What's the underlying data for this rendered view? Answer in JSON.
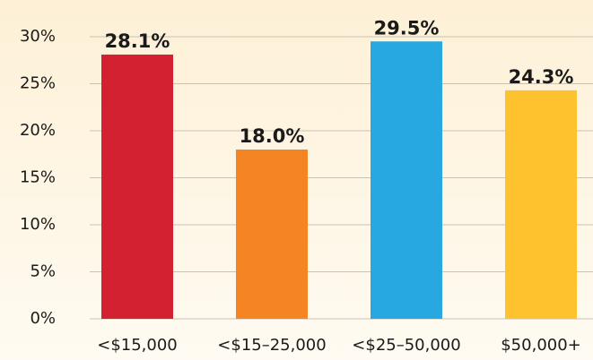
{
  "chart_data": {
    "type": "bar",
    "categories": [
      "<$15,000",
      "<$15–25,000",
      "<$25–50,000",
      "$50,000+"
    ],
    "values": [
      28.1,
      18.0,
      29.5,
      24.3
    ],
    "value_labels": [
      "28.1%",
      "18.0%",
      "29.5%",
      "24.3%"
    ],
    "colors": [
      "#d42131",
      "#f58423",
      "#27a8e0",
      "#fdc22e"
    ],
    "ylim": [
      0,
      30
    ],
    "yticks": [
      {
        "value": 0,
        "label": "0%"
      },
      {
        "value": 5,
        "label": "5%"
      },
      {
        "value": 10,
        "label": "10%"
      },
      {
        "value": 15,
        "label": "15%"
      },
      {
        "value": 20,
        "label": "20%"
      },
      {
        "value": 25,
        "label": "25%"
      },
      {
        "value": 30,
        "label": "30%"
      }
    ],
    "grid": true
  }
}
